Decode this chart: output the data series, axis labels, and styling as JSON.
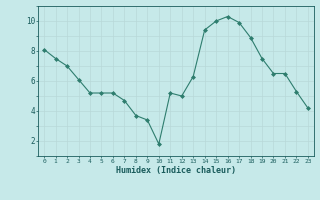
{
  "x": [
    0,
    1,
    2,
    3,
    4,
    5,
    6,
    7,
    8,
    9,
    10,
    11,
    12,
    13,
    14,
    15,
    16,
    17,
    18,
    19,
    20,
    21,
    22,
    23
  ],
  "y": [
    8.1,
    7.5,
    7.0,
    6.1,
    5.2,
    5.2,
    5.2,
    4.7,
    3.7,
    3.4,
    1.8,
    5.2,
    5.0,
    6.3,
    9.4,
    10.0,
    10.3,
    9.9,
    8.9,
    7.5,
    6.5,
    6.5,
    5.3,
    4.2
  ],
  "line_color": "#2e7d6e",
  "marker": "D",
  "marker_size": 2.0,
  "bg_color": "#c6e9e9",
  "grid_color": "#b8d8d8",
  "xlabel": "Humidex (Indice chaleur)",
  "xlabel_color": "#1a5c5c",
  "tick_color": "#1a5c5c",
  "ylim": [
    1,
    11
  ],
  "xlim": [
    -0.5,
    23.5
  ]
}
